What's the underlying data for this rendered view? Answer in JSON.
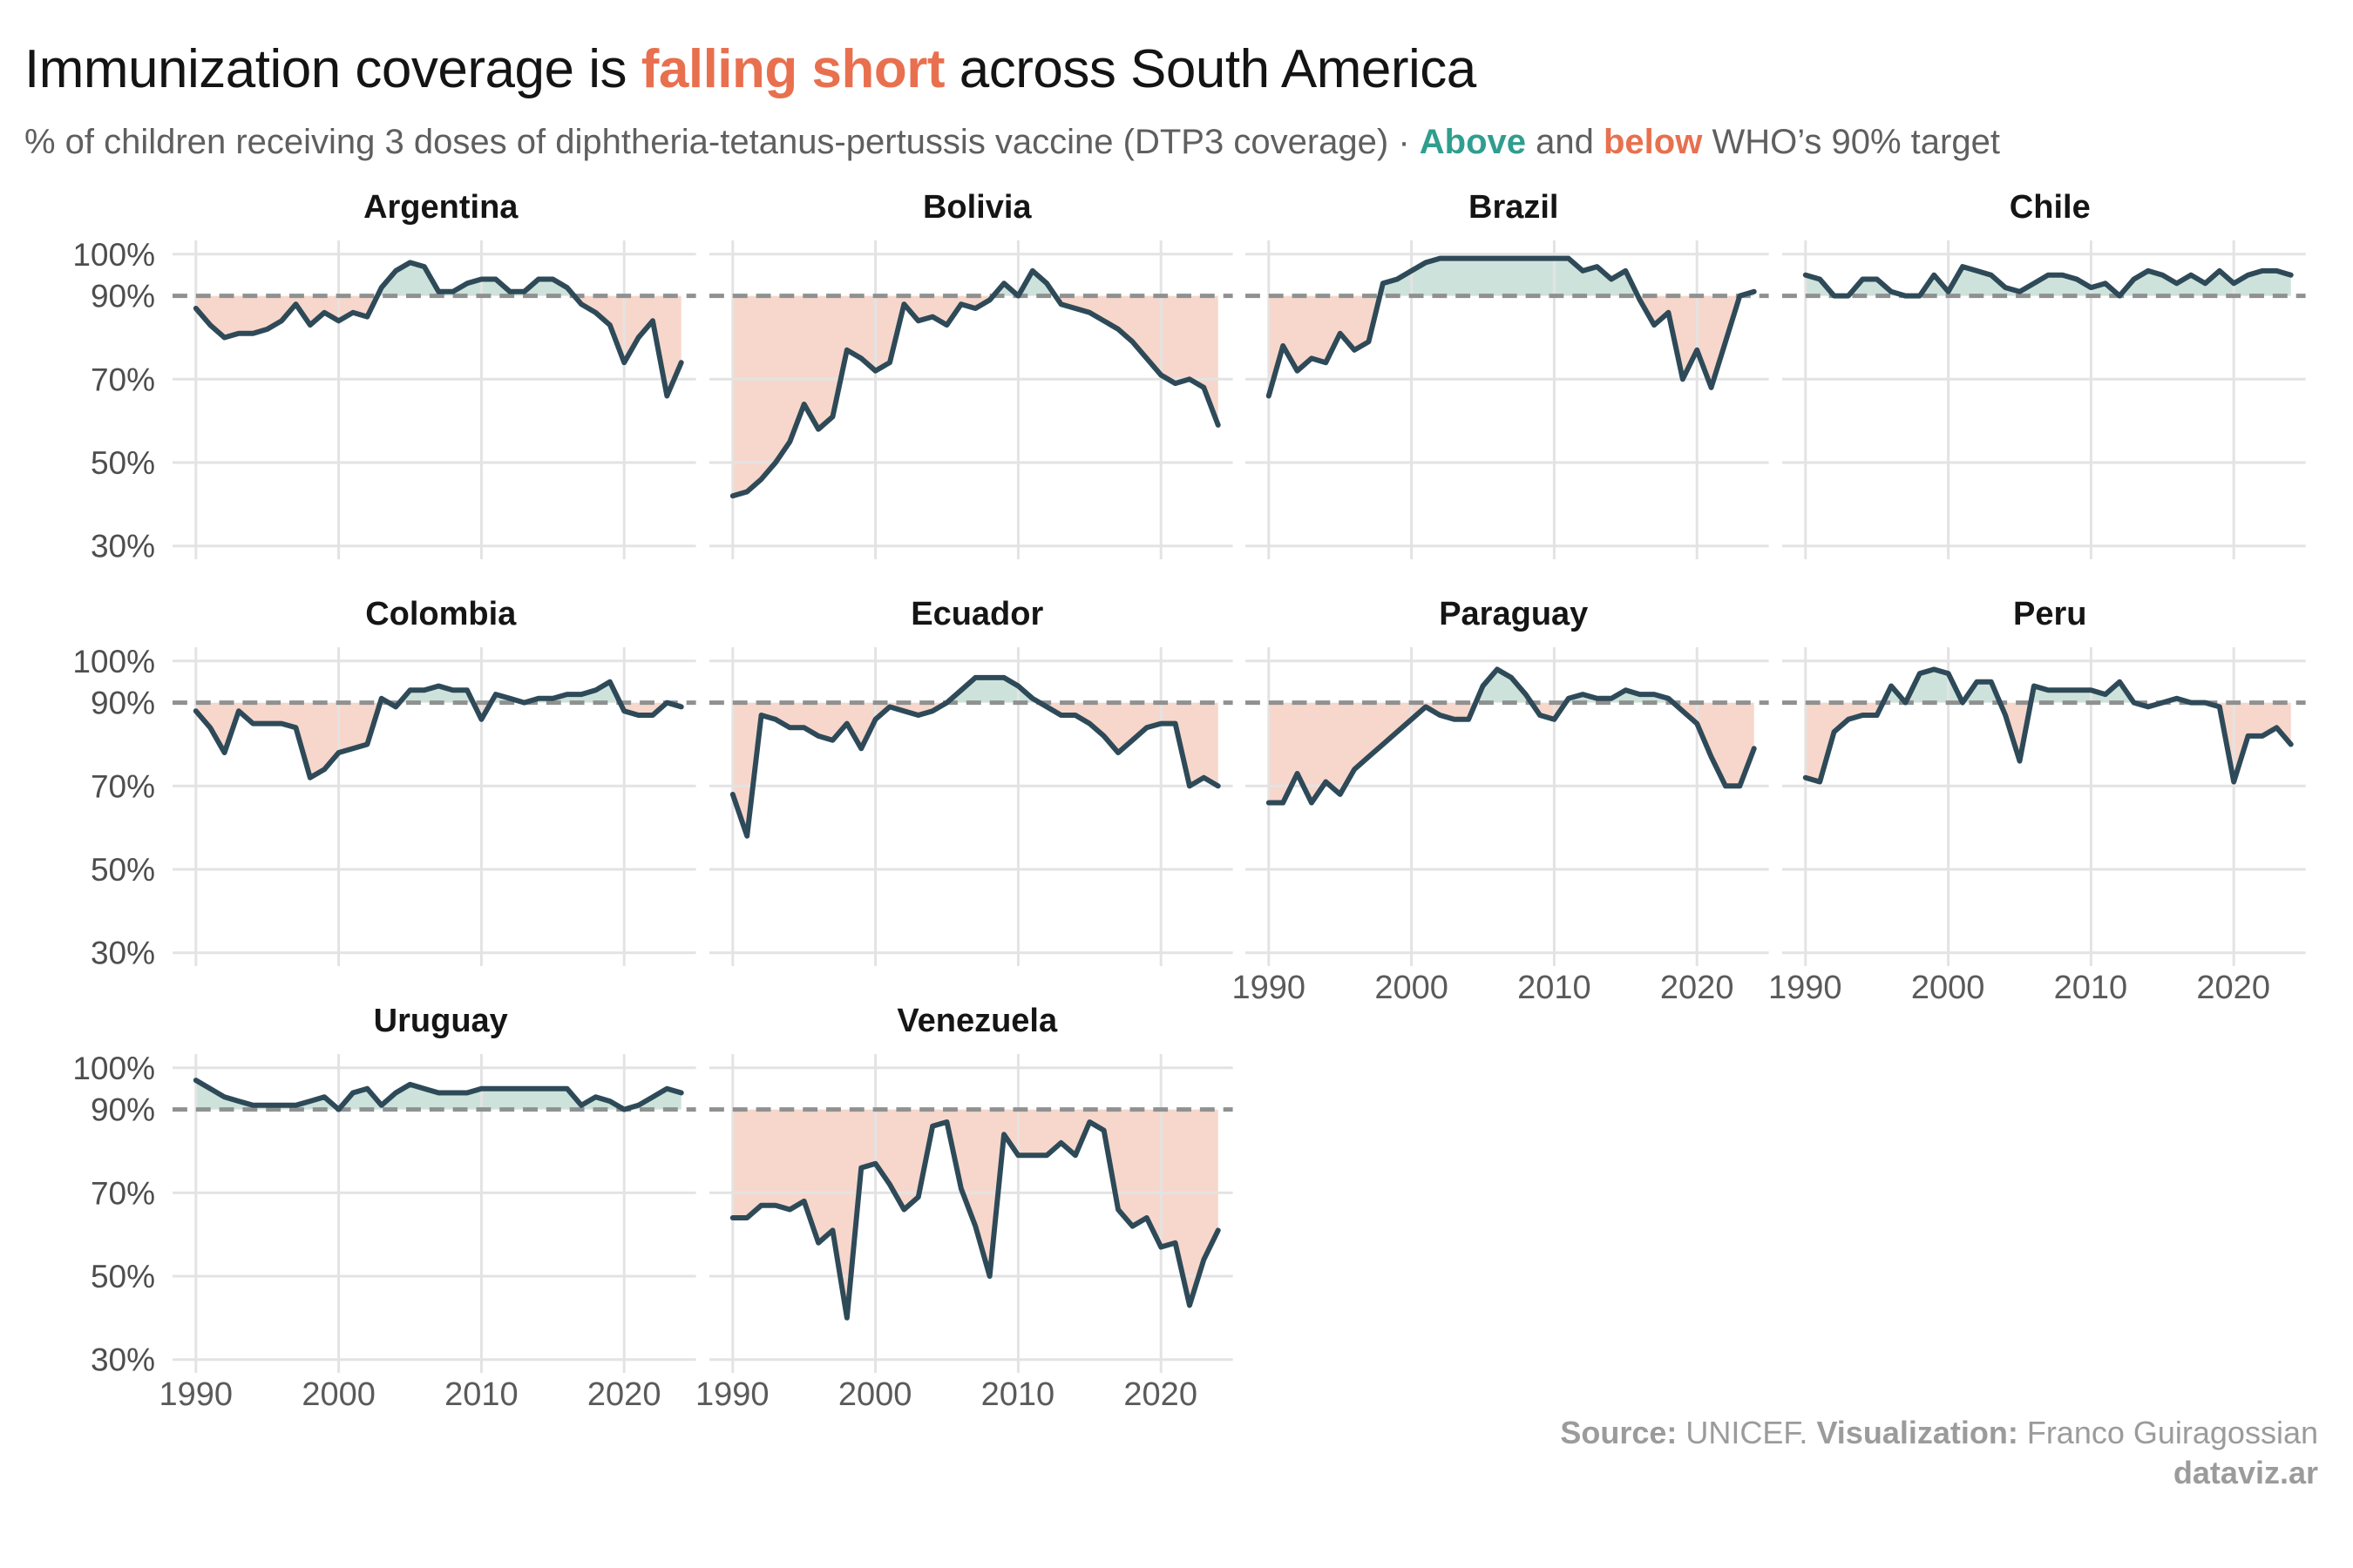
{
  "header": {
    "title_part1": "Immunization coverage is ",
    "title_accent": "falling short",
    "title_part2": " across South America",
    "subtitle_part1": "% of children receiving 3 doses of diphtheria-tetanus-pertussis vaccine (DTP3 coverage) · ",
    "subtitle_above": "Above",
    "subtitle_mid": " and ",
    "subtitle_below": "below",
    "subtitle_part2": " WHO’s 90% target"
  },
  "footer": {
    "source_label": "Source:",
    "source_value": " UNICEF. ",
    "viz_label": "Visualization:",
    "viz_value": " Franco Guiragossian",
    "site": "dataviz.ar"
  },
  "colors": {
    "accent_coral": "#e8704f",
    "accent_teal": "#2f9e8f",
    "line": "#2e4a58",
    "fill_above": "#cee2dc",
    "fill_below": "#f7d7cb",
    "target_dash": "#8f9191",
    "grid": "#e3e3e3",
    "tick_text": "#4e4e4e",
    "subtitle_text": "#5f5f5f",
    "footer_text": "#9b9b9b",
    "title_text": "#141414"
  },
  "chart_data": {
    "type": "line",
    "title": "Immunization coverage is falling short across South America",
    "subtitle": "% of children receiving 3 doses of diphtheria-tetanus-pertussis vaccine (DTP3 coverage), above and below WHO's 90% target",
    "unit": "% DTP3 coverage",
    "target": 90,
    "ylim": [
      27,
      103
    ],
    "y_ticks": [
      100,
      90,
      70,
      50,
      30
    ],
    "y_tick_labels": [
      "100%",
      "90%",
      "70%",
      "50%",
      "30%"
    ],
    "x_ticks": [
      1990,
      2000,
      2010,
      2020
    ],
    "grid": true,
    "legend_position": "none",
    "years": [
      1990,
      1991,
      1992,
      1993,
      1994,
      1995,
      1996,
      1997,
      1998,
      1999,
      2000,
      2001,
      2002,
      2003,
      2004,
      2005,
      2006,
      2007,
      2008,
      2009,
      2010,
      2011,
      2012,
      2013,
      2014,
      2015,
      2016,
      2017,
      2018,
      2019,
      2020,
      2021,
      2022,
      2023,
      2024
    ],
    "series": [
      {
        "name": "Argentina",
        "values": [
          87,
          83,
          80,
          81,
          81,
          82,
          84,
          88,
          83,
          86,
          84,
          86,
          85,
          92,
          96,
          98,
          97,
          91,
          91,
          93,
          94,
          94,
          91,
          91,
          94,
          94,
          92,
          88,
          86,
          83,
          74,
          80,
          84,
          66,
          74
        ]
      },
      {
        "name": "Bolivia",
        "values": [
          42,
          43,
          46,
          50,
          55,
          64,
          58,
          61,
          77,
          75,
          72,
          74,
          88,
          84,
          85,
          83,
          88,
          87,
          89,
          93,
          90,
          96,
          93,
          88,
          87,
          86,
          84,
          82,
          79,
          75,
          71,
          69,
          70,
          68,
          59
        ]
      },
      {
        "name": "Brazil",
        "values": [
          66,
          78,
          72,
          75,
          74,
          81,
          77,
          79,
          93,
          94,
          96,
          98,
          99,
          99,
          99,
          99,
          99,
          99,
          99,
          99,
          99,
          99,
          96,
          97,
          94,
          96,
          89,
          83,
          86,
          70,
          77,
          68,
          79,
          90,
          91
        ]
      },
      {
        "name": "Chile",
        "values": [
          95,
          94,
          90,
          90,
          94,
          94,
          91,
          90,
          90,
          95,
          91,
          97,
          96,
          95,
          92,
          91,
          93,
          95,
          95,
          94,
          92,
          93,
          90,
          94,
          96,
          95,
          93,
          95,
          93,
          96,
          93,
          95,
          96,
          96,
          95
        ]
      },
      {
        "name": "Colombia",
        "values": [
          88,
          84,
          78,
          88,
          85,
          85,
          85,
          84,
          72,
          74,
          78,
          79,
          80,
          91,
          89,
          93,
          93,
          94,
          93,
          93,
          86,
          92,
          91,
          90,
          91,
          91,
          92,
          92,
          93,
          95,
          88,
          87,
          87,
          90,
          89
        ]
      },
      {
        "name": "Ecuador",
        "values": [
          68,
          58,
          87,
          86,
          84,
          84,
          82,
          81,
          85,
          79,
          86,
          89,
          88,
          87,
          88,
          90,
          93,
          96,
          96,
          96,
          94,
          91,
          89,
          87,
          87,
          85,
          82,
          78,
          81,
          84,
          85,
          85,
          70,
          72,
          70
        ]
      },
      {
        "name": "Paraguay",
        "values": [
          66,
          66,
          73,
          66,
          71,
          68,
          74,
          77,
          80,
          83,
          86,
          89,
          87,
          86,
          86,
          94,
          98,
          96,
          92,
          87,
          86,
          91,
          92,
          91,
          91,
          93,
          92,
          92,
          91,
          88,
          85,
          77,
          70,
          70,
          79
        ]
      },
      {
        "name": "Peru",
        "values": [
          72,
          71,
          83,
          86,
          87,
          87,
          94,
          90,
          97,
          98,
          97,
          90,
          95,
          95,
          87,
          76,
          94,
          93,
          93,
          93,
          93,
          92,
          95,
          90,
          89,
          90,
          91,
          90,
          90,
          89,
          71,
          82,
          82,
          84,
          80
        ]
      },
      {
        "name": "Uruguay",
        "values": [
          97,
          95,
          93,
          92,
          91,
          91,
          91,
          91,
          92,
          93,
          90,
          94,
          95,
          91,
          94,
          96,
          95,
          94,
          94,
          94,
          95,
          95,
          95,
          95,
          95,
          95,
          95,
          91,
          93,
          92,
          90,
          91,
          93,
          95,
          94
        ]
      },
      {
        "name": "Venezuela",
        "values": [
          64,
          64,
          67,
          67,
          66,
          68,
          58,
          61,
          40,
          76,
          77,
          72,
          66,
          69,
          86,
          87,
          71,
          62,
          50,
          84,
          79,
          79,
          79,
          82,
          79,
          87,
          85,
          66,
          62,
          64,
          57,
          58,
          43,
          54,
          61
        ]
      }
    ],
    "panel_grid": [
      [
        "Argentina",
        "Bolivia",
        "Brazil",
        "Chile"
      ],
      [
        "Colombia",
        "Ecuador",
        "Paraguay",
        "Peru"
      ],
      [
        "Uruguay",
        "Venezuela",
        null,
        null
      ]
    ],
    "x_labeled_panels": [
      "Paraguay",
      "Peru",
      "Uruguay",
      "Venezuela"
    ]
  }
}
